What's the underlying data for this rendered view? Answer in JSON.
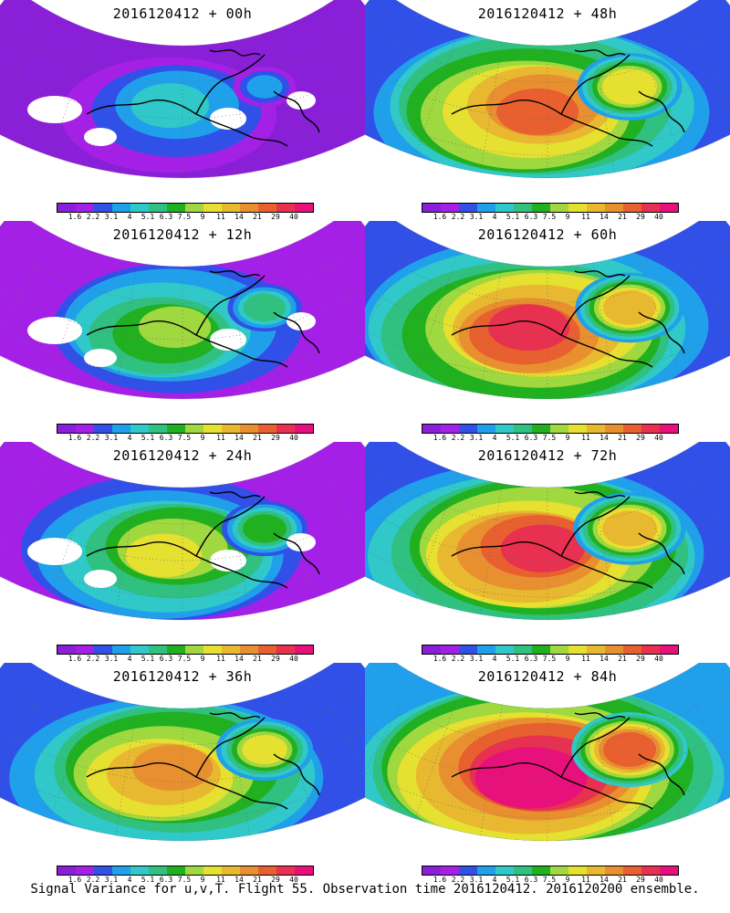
{
  "panels": [
    {
      "title": "2016120412 + 00h",
      "level": 0.15
    },
    {
      "title": "2016120412 + 48h",
      "level": 0.7
    },
    {
      "title": "2016120412 + 12h",
      "level": 0.3
    },
    {
      "title": "2016120412 + 60h",
      "level": 0.75
    },
    {
      "title": "2016120412 + 24h",
      "level": 0.45
    },
    {
      "title": "2016120412 + 72h",
      "level": 0.8
    },
    {
      "title": "2016120412 + 36h",
      "level": 0.6
    },
    {
      "title": "2016120412 + 84h",
      "level": 0.85
    }
  ],
  "colorbar": {
    "labels": [
      "1.6",
      "2.2",
      "3.1",
      "4",
      "5.1",
      "6.3",
      "7.5",
      "9",
      "11",
      "14",
      "21",
      "29",
      "40"
    ],
    "colors": [
      "#8a1fd8",
      "#a520e6",
      "#3050e8",
      "#20a0ea",
      "#30c8c8",
      "#30c080",
      "#20b020",
      "#a0d840",
      "#e6e030",
      "#e8b830",
      "#e89030",
      "#e86030",
      "#e83050",
      "#e8107a"
    ]
  },
  "footer": "Signal Variance for u,v,T. Flight 55. Observation time 2016120412. 2016120200 ensemble."
}
